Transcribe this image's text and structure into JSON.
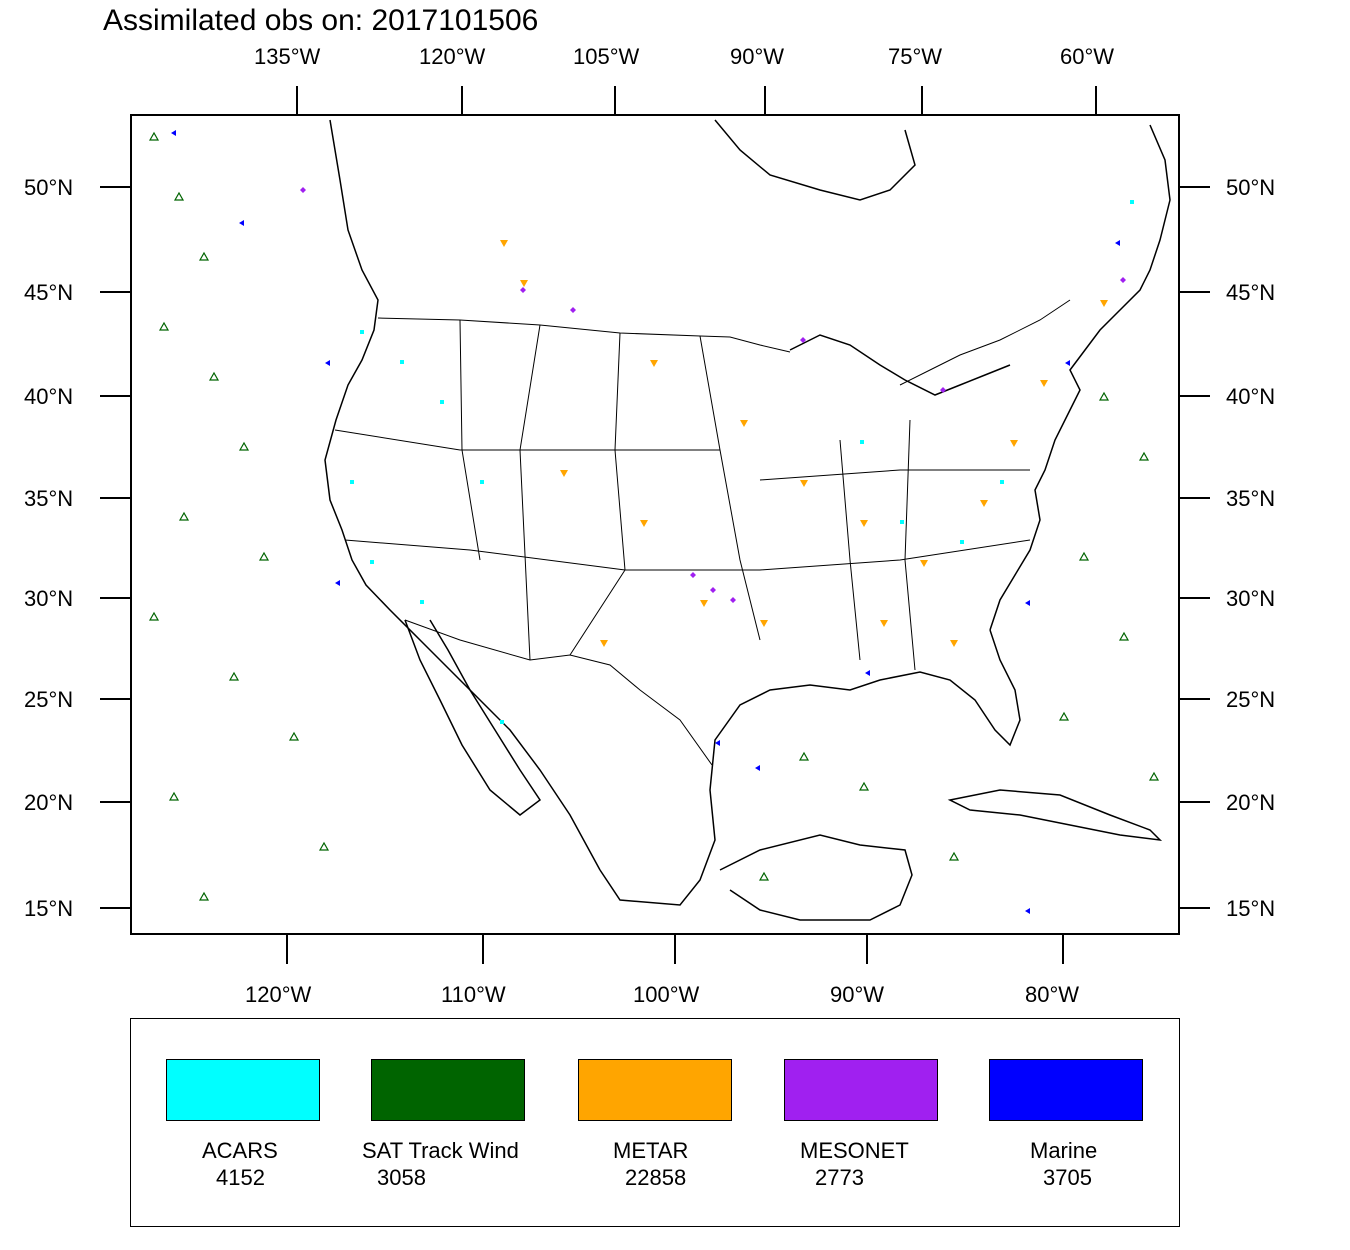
{
  "title": "Assimilated obs on: 2017101506",
  "top_axis_labels": [
    "135°W",
    "120°W",
    "105°W",
    "90°W",
    "75°W",
    "60°W"
  ],
  "bottom_axis_labels": [
    "120°W",
    "110°W",
    "100°W",
    "90°W",
    "80°W"
  ],
  "left_axis_labels": [
    "50°N",
    "45°N",
    "40°N",
    "35°N",
    "30°N",
    "25°N",
    "20°N",
    "15°N"
  ],
  "right_axis_labels": [
    "50°N",
    "45°N",
    "40°N",
    "35°N",
    "30°N",
    "25°N",
    "20°N",
    "15°N"
  ],
  "legend": [
    {
      "name": "ACARS",
      "count": "4152",
      "color": "#00ffff"
    },
    {
      "name": "SAT Track Wind",
      "count": "3058",
      "color": "#006400"
    },
    {
      "name": "METAR",
      "count": "22858",
      "color": "#ffa500"
    },
    {
      "name": "MESONET",
      "count": "2773",
      "color": "#a020f0"
    },
    {
      "name": "Marine",
      "count": "3705",
      "color": "#0000ff"
    }
  ]
}
